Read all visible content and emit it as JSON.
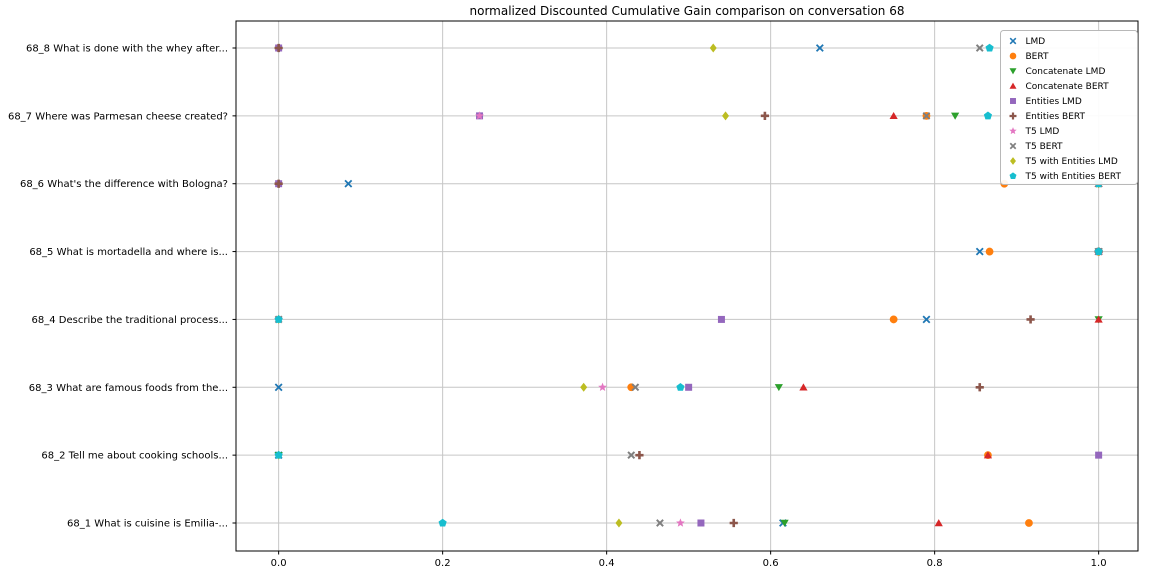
{
  "chart_data": {
    "type": "scatter",
    "title": "normalized Discounted Cumulative Gain comparison on conversation 68",
    "xlabel": "",
    "ylabel": "",
    "grid": true,
    "legend_position": "upper right",
    "xlim": [
      -0.05,
      1.05
    ],
    "x_ticks": [
      "0.0",
      "0.2",
      "0.4",
      "0.6",
      "0.8",
      "1.0"
    ],
    "categories_bottom_to_top": [
      "68_1 What is cuisine is Emilia-...",
      "68_2 Tell me about cooking schools...",
      "68_3 What are famous foods from the...",
      "68_4 Describe the traditional process...",
      "68_5 What is mortadella and where is...",
      "68_6 What's the difference with Bologna?",
      "68_7 Where was Parmesan cheese created?",
      "68_8 What is done with the whey after..."
    ],
    "series": [
      {
        "name": "LMD",
        "marker": "x",
        "color": "#1f77b4",
        "points": [
          [
            0,
            0.615
          ],
          [
            1,
            0.0
          ],
          [
            2,
            0.0
          ],
          [
            3,
            0.79
          ],
          [
            4,
            0.855
          ],
          [
            5,
            0.085
          ],
          [
            7,
            0.66
          ]
        ]
      },
      {
        "name": "BERT",
        "marker": "circle",
        "color": "#ff7f0e",
        "points": [
          [
            0,
            0.915
          ],
          [
            1,
            0.865
          ],
          [
            2,
            0.43
          ],
          [
            3,
            0.75
          ],
          [
            4,
            0.867
          ],
          [
            5,
            0.885
          ],
          [
            6,
            0.79
          ]
        ]
      },
      {
        "name": "Concatenate LMD",
        "marker": "triangle_down",
        "color": "#2ca02c",
        "points": [
          [
            0,
            0.617
          ],
          [
            1,
            0.0
          ],
          [
            2,
            0.61
          ],
          [
            3,
            1.0
          ],
          [
            4,
            1.0
          ],
          [
            5,
            1.0
          ],
          [
            6,
            0.825
          ]
        ]
      },
      {
        "name": "Concatenate BERT",
        "marker": "triangle_up",
        "color": "#d62728",
        "points": [
          [
            0,
            0.805
          ],
          [
            1,
            0.865
          ],
          [
            2,
            0.64
          ],
          [
            3,
            1.0
          ],
          [
            4,
            1.0
          ],
          [
            5,
            1.0
          ],
          [
            6,
            0.75
          ]
        ]
      },
      {
        "name": "Entities LMD",
        "marker": "square",
        "color": "#9467bd",
        "points": [
          [
            0,
            0.515
          ],
          [
            1,
            1.0
          ],
          [
            2,
            0.5
          ],
          [
            3,
            0.54
          ],
          [
            4,
            1.0
          ],
          [
            5,
            0.0
          ],
          [
            6,
            0.245
          ],
          [
            7,
            0.0
          ]
        ]
      },
      {
        "name": "Entities BERT",
        "marker": "plus",
        "color": "#8c564b",
        "points": [
          [
            0,
            0.555
          ],
          [
            1,
            0.44
          ],
          [
            2,
            0.855
          ],
          [
            3,
            0.917
          ],
          [
            4,
            1.0
          ],
          [
            5,
            0.0
          ],
          [
            6,
            0.593
          ],
          [
            7,
            0.0
          ]
        ]
      },
      {
        "name": "T5 LMD",
        "marker": "star",
        "color": "#e377c2",
        "points": [
          [
            0,
            0.49
          ],
          [
            1,
            0.0
          ],
          [
            2,
            0.395
          ],
          [
            3,
            0.0
          ],
          [
            4,
            1.0
          ],
          [
            5,
            1.0
          ],
          [
            6,
            0.245
          ]
        ]
      },
      {
        "name": "T5 BERT",
        "marker": "x_filled",
        "color": "#7f7f7f",
        "points": [
          [
            0,
            0.465
          ],
          [
            1,
            0.43
          ],
          [
            2,
            0.435
          ],
          [
            3,
            0.0
          ],
          [
            4,
            1.0
          ],
          [
            5,
            1.0
          ],
          [
            6,
            0.79
          ],
          [
            7,
            0.855
          ]
        ]
      },
      {
        "name": "T5 with Entities LMD",
        "marker": "diamond",
        "color": "#bcbd22",
        "points": [
          [
            0,
            0.415
          ],
          [
            1,
            0.0
          ],
          [
            2,
            0.372
          ],
          [
            3,
            0.0
          ],
          [
            4,
            1.0
          ],
          [
            5,
            1.0
          ],
          [
            6,
            0.545
          ],
          [
            7,
            0.53
          ]
        ]
      },
      {
        "name": "T5 with Entities BERT",
        "marker": "pentagon",
        "color": "#17becf",
        "points": [
          [
            0,
            0.2
          ],
          [
            1,
            0.0
          ],
          [
            2,
            0.49
          ],
          [
            3,
            0.0
          ],
          [
            4,
            1.0
          ],
          [
            5,
            1.0
          ],
          [
            6,
            0.865
          ],
          [
            7,
            0.867
          ]
        ]
      }
    ],
    "style": {
      "grid_color": "#c6c6c6",
      "spine_color": "#000000",
      "legend_border_color": "#b8b8b8",
      "legend_background": "rgba(255,255,255,0.92)"
    }
  }
}
